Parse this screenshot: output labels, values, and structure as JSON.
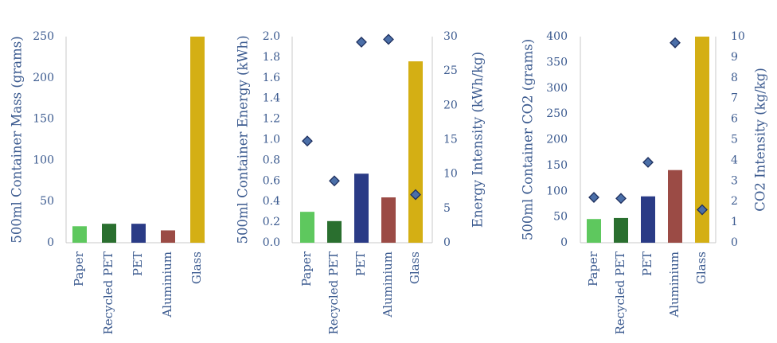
{
  "colors": {
    "Paper": "#5ec85e",
    "Recycled PET": "#2a6f2f",
    "PET": "#2a3b86",
    "Aluminium": "#9b4b45",
    "Glass": "#d4af14",
    "marker_fill": "#4b6fa8",
    "marker_stroke": "#1e2f5e",
    "text": "#3b5a8f"
  },
  "chart_data": [
    {
      "type": "bar",
      "categories": [
        "Paper",
        "Recycled PET",
        "PET",
        "Aluminium",
        "Glass"
      ],
      "series": [
        {
          "values": [
            20,
            23,
            23,
            15,
            250
          ],
          "axis": "left"
        }
      ],
      "ylabel": "500ml Container Mass (grams)",
      "ylim": [
        0,
        250
      ],
      "yticks": [
        "0",
        "50",
        "100",
        "150",
        "200",
        "250"
      ],
      "grid": false
    },
    {
      "type": "bar",
      "categories": [
        "Paper",
        "Recycled PET",
        "PET",
        "Aluminium",
        "Glass"
      ],
      "series": [
        {
          "values": [
            0.3,
            0.21,
            0.67,
            0.44,
            1.76
          ],
          "axis": "left",
          "marker": "bar"
        },
        {
          "values": [
            14.8,
            9.0,
            29.2,
            29.6,
            7.0
          ],
          "axis": "right",
          "marker": "diamond"
        }
      ],
      "ylabel": "500ml Container Energy (kWh)",
      "ylim": [
        0,
        2.0
      ],
      "yticks": [
        "0.0",
        "0.2",
        "0.4",
        "0.6",
        "0.8",
        "1.0",
        "1.2",
        "1.4",
        "1.6",
        "1.8",
        "2.0"
      ],
      "y2label": "Energy Intensity (kWh/kg)",
      "y2lim": [
        0,
        30
      ],
      "y2ticks": [
        "0",
        "5",
        "10",
        "15",
        "20",
        "25",
        "30"
      ],
      "grid": false
    },
    {
      "type": "bar",
      "categories": [
        "Paper",
        "Recycled PET",
        "PET",
        "Aluminium",
        "Glass"
      ],
      "series": [
        {
          "values": [
            46,
            48,
            90,
            141,
            400
          ],
          "axis": "left",
          "marker": "bar"
        },
        {
          "values": [
            2.2,
            2.15,
            3.9,
            9.7,
            1.6
          ],
          "axis": "right",
          "marker": "diamond"
        }
      ],
      "ylabel": "500ml Container CO2 (grams)",
      "ylim": [
        0,
        400
      ],
      "yticks": [
        "0",
        "50",
        "100",
        "150",
        "200",
        "250",
        "300",
        "350",
        "400"
      ],
      "y2label": "CO2 Intensity (kg/kg)",
      "y2lim": [
        0,
        10
      ],
      "y2ticks": [
        "0",
        "1",
        "2",
        "3",
        "4",
        "5",
        "6",
        "7",
        "8",
        "9",
        "10"
      ],
      "grid": false
    }
  ]
}
